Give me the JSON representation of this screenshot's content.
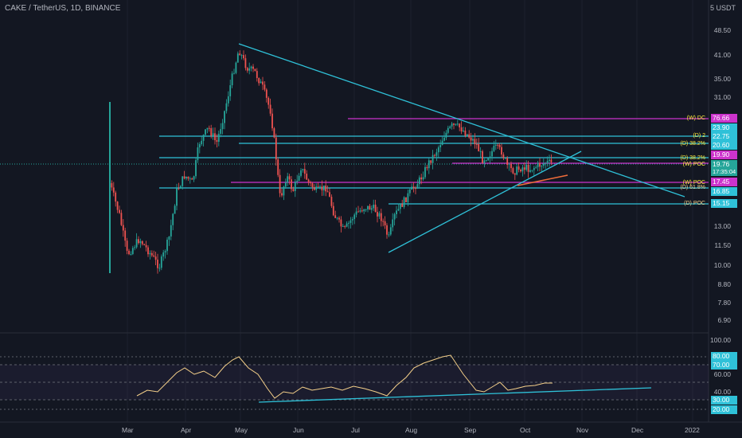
{
  "header": {
    "title": "CAKE / TetherUS, 1D, BINANCE",
    "unit_label": "5 USDT"
  },
  "price_axis": [
    "48.50",
    "41.00",
    "35.00",
    "31.00",
    "13.00",
    "11.50",
    "10.00",
    "8.80",
    "7.80",
    "6.90"
  ],
  "tags": {
    "wdc": "76.66",
    "wdc_name": "(W) DC",
    "d2": "22.75",
    "d2_name": "(D) 2",
    "d382": "20.60",
    "d382_name": "(D) 38.2%",
    "c1": "23.90",
    "fib": "19.90",
    "fib_name": "(D) 38.2%",
    "last": "19.76",
    "countdown": "17:35:04",
    "wpoc_name": "(W) POC",
    "wpoc2": "17.45",
    "wpoc2_name": "(W) POC",
    "d618": "16.85",
    "d618_name": "(D) 61.8%",
    "dpoc": "15.15",
    "dpoc_name": "(D) POC"
  },
  "rsi_axis": {
    "a100": "100.00",
    "a60": "60.00",
    "a40": "40.00",
    "a80": "80.00",
    "a70": "70.00",
    "a30": "30.00",
    "a20": "20.00"
  },
  "x_axis": [
    "Mar",
    "Apr",
    "May",
    "Jun",
    "Jul",
    "Aug",
    "Sep",
    "Oct",
    "Nov",
    "Dec",
    "2022"
  ],
  "colors": {
    "bg": "#131722",
    "up": "#26a69a",
    "down": "#ef5350",
    "trend": "#2fc1d8",
    "magenta": "#cc33cc",
    "rsi": "#f5d08a"
  },
  "chart_data": {
    "type": "candlestick",
    "x": [
      "Mar",
      "Apr",
      "May",
      "Jun",
      "Jul",
      "Aug",
      "Sep",
      "Oct",
      "Nov",
      "Dec",
      "2022"
    ],
    "close": [
      11,
      12,
      40,
      22,
      14,
      17,
      25,
      19.5,
      null,
      null,
      null
    ],
    "y_ticks": [
      "48.50",
      "41.00",
      "35.00",
      "31.00",
      "13.00",
      "11.50",
      "10.00",
      "8.80",
      "7.80",
      "6.90"
    ],
    "rsi": {
      "levels": [
        "80.00",
        "70.00",
        "30.00",
        "20.00"
      ],
      "ticks": [
        "100.00",
        "60.00",
        "40.00"
      ]
    }
  }
}
